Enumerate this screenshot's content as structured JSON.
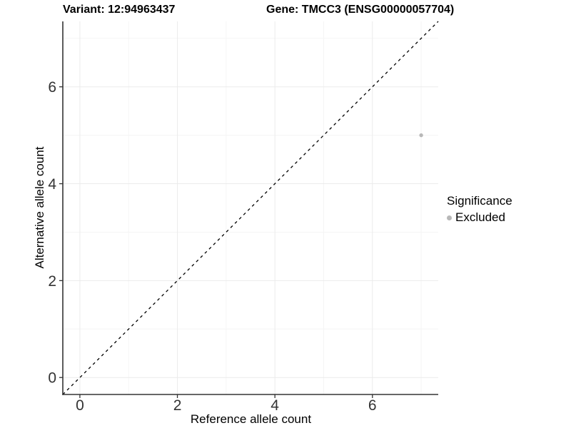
{
  "window": {
    "title_left": "Variant: 12:94963437",
    "title_right": "Gene: TMCC3 (ENSG00000057704)"
  },
  "chart_data": {
    "type": "scatter",
    "title": "Variant: 12:94963437   Gene: TMCC3 (ENSG00000057704)",
    "xlabel": "Reference allele count",
    "ylabel": "Alternative allele count",
    "xlim": [
      -0.35,
      7.35
    ],
    "ylim": [
      -0.35,
      7.35
    ],
    "xticks": [
      0,
      2,
      4,
      6
    ],
    "yticks": [
      0,
      2,
      4,
      6
    ],
    "x_minor_ticks": [
      1,
      3,
      5,
      7
    ],
    "y_minor_ticks": [
      1,
      3,
      5,
      7
    ],
    "grid": "major+minor",
    "points": [
      {
        "x": 7,
        "y": 5,
        "series": "Excluded"
      }
    ],
    "reference_line": {
      "type": "identity y=x",
      "style": "dashed",
      "color": "#000000"
    },
    "legend": {
      "title": "Significance",
      "position": "right",
      "items": [
        {
          "label": "Excluded",
          "color": "#b8b8b8"
        }
      ]
    }
  },
  "colors": {
    "background": "#ffffff",
    "grid_major": "#ebebeb",
    "grid_minor": "#f5f5f5",
    "axis_line": "#333333",
    "tick_mark": "#333333",
    "tick_label": "#333333",
    "point": "#b8b8b8",
    "dashed_line": "#000000"
  }
}
